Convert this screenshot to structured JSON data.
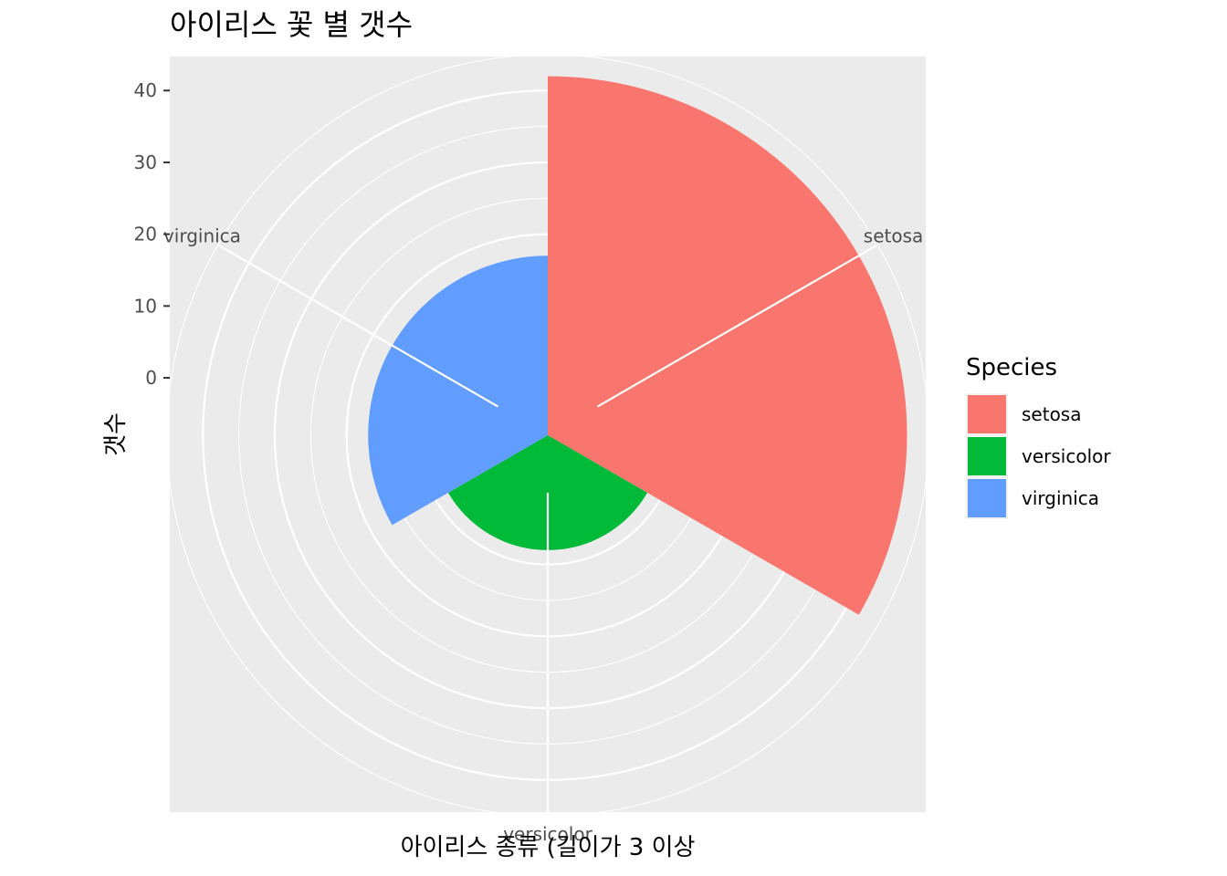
{
  "chart_data": {
    "type": "bar",
    "coord": "polar",
    "title": "아이리스 꽃 별 갯수",
    "xlabel": "아이리스 종류 (길이가 3 이상",
    "ylabel": "갯수",
    "categories": [
      "setosa",
      "versicolor",
      "virginica"
    ],
    "values": [
      42,
      8,
      17
    ],
    "colors": [
      "#F8766D",
      "#00BA38",
      "#619CFF"
    ],
    "ylim": [
      -8,
      50
    ],
    "yticks": [
      0,
      10,
      20,
      30,
      40
    ],
    "ytick_labels": [
      "0",
      "10",
      "20",
      "30",
      "40"
    ],
    "panel_background": "#EBEBEB",
    "grid": true,
    "legend": {
      "title": "Species",
      "position": "right",
      "items": [
        "setosa",
        "versicolor",
        "virginica"
      ]
    }
  }
}
